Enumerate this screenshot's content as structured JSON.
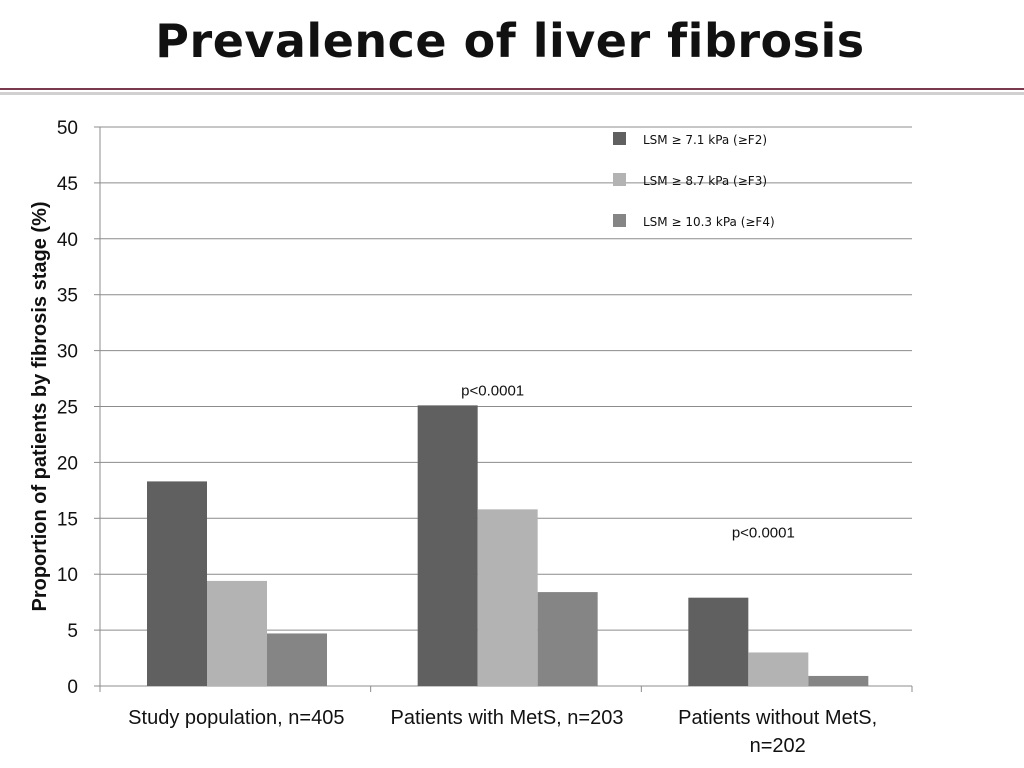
{
  "page": {
    "title": "Prevalence of liver fibrosis"
  },
  "chart_data": {
    "type": "bar",
    "title": "",
    "ylabel": "Proportion of patients by fibrosis stage (%)",
    "xlabel": "",
    "ylim": [
      0,
      50
    ],
    "yticks": [
      0,
      5,
      10,
      15,
      20,
      25,
      30,
      35,
      40,
      45,
      50
    ],
    "grid": true,
    "legend_position": "top-right",
    "categories": [
      [
        "Study population, n=405"
      ],
      [
        "Patients with MetS, n=203"
      ],
      [
        "Patients without MetS,",
        "n=202"
      ]
    ],
    "series": [
      {
        "name": "LSM ≥ 7.1 kPa (≥F2)",
        "color": "#606060",
        "values": [
          18.3,
          25.1,
          7.9
        ]
      },
      {
        "name": "LSM ≥ 8.7 kPa (≥F3)",
        "color": "#b3b3b3",
        "values": [
          9.4,
          15.8,
          3.0
        ]
      },
      {
        "name": "LSM ≥ 10.3 kPa (≥F4)",
        "color": "#858585",
        "values": [
          4.7,
          8.4,
          0.9
        ]
      }
    ],
    "annotations": [
      {
        "text": "p<0.0001",
        "category_index": 1
      },
      {
        "text": "p<0.0001",
        "category_index": 2
      }
    ]
  }
}
